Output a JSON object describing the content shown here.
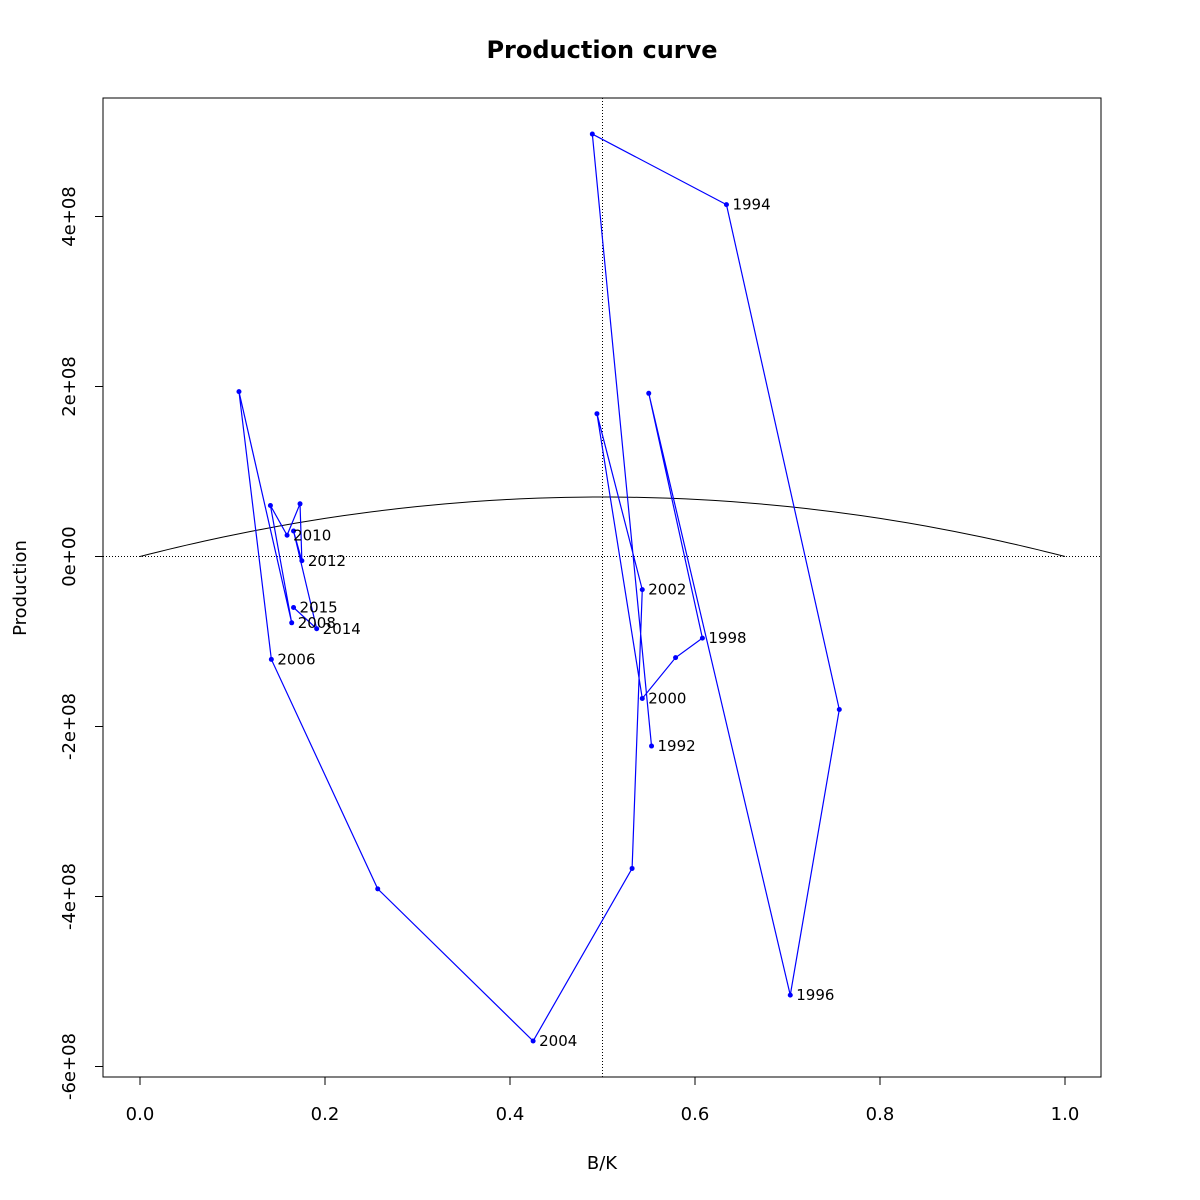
{
  "chart_data": {
    "type": "line",
    "title": "Production curve",
    "xlabel": "B/K",
    "ylabel": "Production",
    "xlim": [
      0.0,
      1.0
    ],
    "ylim": [
      -600000000,
      500000000
    ],
    "x_ticks": [
      {
        "value": 0.0,
        "label": "0.0"
      },
      {
        "value": 0.2,
        "label": "0.2"
      },
      {
        "value": 0.4,
        "label": "0.4"
      },
      {
        "value": 0.6,
        "label": "0.6"
      },
      {
        "value": 0.8,
        "label": "0.8"
      },
      {
        "value": 1.0,
        "label": "1.0"
      }
    ],
    "y_ticks": [
      {
        "value": -600000000,
        "label": "-6e+08"
      },
      {
        "value": -400000000,
        "label": "-4e+08"
      },
      {
        "value": -200000000,
        "label": "-2e+08"
      },
      {
        "value": 0,
        "label": "0e+00"
      },
      {
        "value": 200000000,
        "label": "2e+08"
      },
      {
        "value": 400000000,
        "label": "4e+08"
      }
    ],
    "grid": false,
    "reference_lines": {
      "vertical_x": 0.5,
      "horizontal_y": 0
    },
    "colors": {
      "trajectory": "#0000ff",
      "curve": "#000000"
    },
    "curve": {
      "name": "",
      "peak_x": 0.5,
      "peak_y": 70000000,
      "x_range": [
        0.0,
        1.0
      ]
    },
    "series": [
      {
        "name": "",
        "points": [
          {
            "x": 0.553,
            "y": -223000000,
            "label": "1992"
          },
          {
            "x": 0.489,
            "y": 497000000,
            "label": ""
          },
          {
            "x": 0.634,
            "y": 414000000,
            "label": "1994"
          },
          {
            "x": 0.756,
            "y": -180000000,
            "label": ""
          },
          {
            "x": 0.703,
            "y": -516000000,
            "label": "1996"
          },
          {
            "x": 0.55,
            "y": 192000000,
            "label": ""
          },
          {
            "x": 0.608,
            "y": -96000000,
            "label": "1998"
          },
          {
            "x": 0.579,
            "y": -119000000,
            "label": ""
          },
          {
            "x": 0.543,
            "y": -167000000,
            "label": "2000"
          },
          {
            "x": 0.494,
            "y": 168000000,
            "label": ""
          },
          {
            "x": 0.543,
            "y": -39000000,
            "label": "2002"
          },
          {
            "x": 0.532,
            "y": -367000000,
            "label": ""
          },
          {
            "x": 0.425,
            "y": -570000000,
            "label": "2004"
          },
          {
            "x": 0.257,
            "y": -391000000,
            "label": ""
          },
          {
            "x": 0.142,
            "y": -121000000,
            "label": "2006"
          },
          {
            "x": 0.107,
            "y": 194000000,
            "label": ""
          },
          {
            "x": 0.164,
            "y": -78000000,
            "label": "2008"
          },
          {
            "x": 0.141,
            "y": 60000000,
            "label": ""
          },
          {
            "x": 0.159,
            "y": 25000000,
            "label": "2010"
          },
          {
            "x": 0.173,
            "y": 62000000,
            "label": ""
          },
          {
            "x": 0.175,
            "y": -5000000,
            "label": "2012"
          },
          {
            "x": 0.166,
            "y": 30000000,
            "label": ""
          },
          {
            "x": 0.191,
            "y": -85000000,
            "label": "2014"
          },
          {
            "x": 0.166,
            "y": -60000000,
            "label": "2015"
          }
        ]
      }
    ]
  }
}
